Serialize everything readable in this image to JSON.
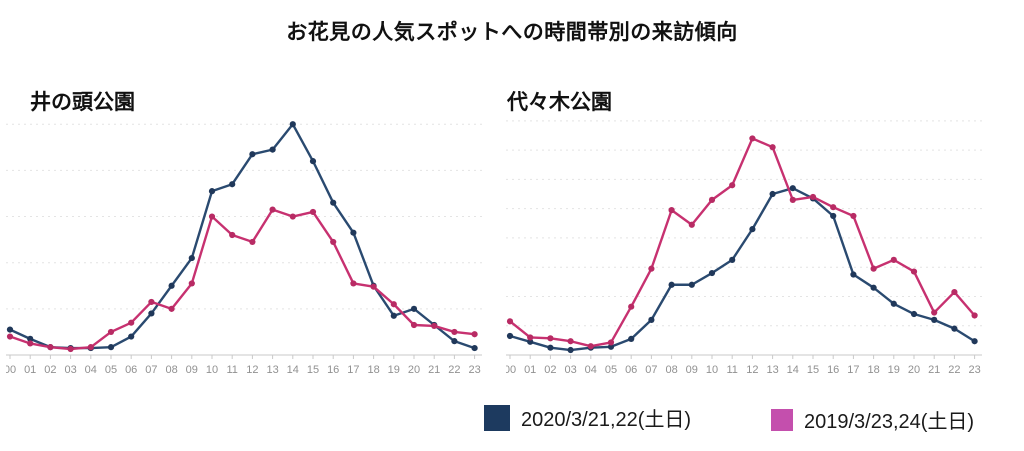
{
  "page_title": "お花見の人気スポットへの時間帯別の来訪傾向",
  "colors": {
    "series_2020_line": "#2a4a70",
    "series_2020_dot": "#20385a",
    "series_2019_line": "#c73170",
    "series_2019_dot": "#b82b64",
    "legend_2020_swatch": "#1d3a5f",
    "legend_2019_swatch": "#c44fad",
    "gridline": "#e4e4e4",
    "axis": "#c9c9c9",
    "tick_label": "#919191"
  },
  "legend": [
    {
      "label": "2020/3/21,22(土日)",
      "color": "#1d3a5f"
    },
    {
      "label": "2019/3/23,24(土日)",
      "color": "#c44fad"
    }
  ],
  "chart_data": [
    {
      "type": "line",
      "title": "井の頭公園",
      "xlabel": "",
      "ylabel": "",
      "y_axis_labels_visible": false,
      "grid": true,
      "grid_interval": 1,
      "ylim": [
        0,
        5.2
      ],
      "x": [
        "00",
        "01",
        "02",
        "03",
        "04",
        "05",
        "06",
        "07",
        "08",
        "09",
        "10",
        "11",
        "12",
        "13",
        "14",
        "15",
        "16",
        "17",
        "18",
        "19",
        "20",
        "21",
        "22",
        "23"
      ],
      "series": [
        {
          "name": "2020/3/21,22(土日)",
          "color": "#2a4a70",
          "values": [
            0.55,
            0.35,
            0.17,
            0.15,
            0.15,
            0.17,
            0.4,
            0.9,
            1.5,
            2.1,
            3.55,
            3.7,
            4.35,
            4.45,
            5.0,
            4.2,
            3.3,
            2.65,
            1.5,
            0.85,
            1.0,
            0.65,
            0.3,
            0.15
          ]
        },
        {
          "name": "2019/3/23,24(土日)",
          "color": "#c73170",
          "values": [
            0.4,
            0.25,
            0.17,
            0.13,
            0.17,
            0.5,
            0.7,
            1.15,
            1.0,
            1.55,
            3.0,
            2.6,
            2.45,
            3.15,
            3.0,
            3.1,
            2.45,
            1.55,
            1.48,
            1.1,
            0.65,
            0.63,
            0.5,
            0.45
          ]
        }
      ]
    },
    {
      "type": "line",
      "title": "代々木公園",
      "xlabel": "",
      "ylabel": "",
      "y_axis_labels_visible": false,
      "grid": true,
      "grid_interval": 1,
      "ylim": [
        0,
        8.2
      ],
      "x": [
        "00",
        "01",
        "02",
        "03",
        "04",
        "05",
        "06",
        "07",
        "08",
        "09",
        "10",
        "11",
        "12",
        "13",
        "14",
        "15",
        "16",
        "17",
        "18",
        "19",
        "20",
        "21",
        "22",
        "23"
      ],
      "series": [
        {
          "name": "2020/3/21,22(土日)",
          "color": "#2a4a70",
          "values": [
            0.65,
            0.45,
            0.25,
            0.17,
            0.25,
            0.28,
            0.55,
            1.2,
            2.4,
            2.4,
            2.8,
            3.25,
            4.3,
            5.5,
            5.7,
            5.35,
            4.75,
            2.75,
            2.3,
            1.75,
            1.4,
            1.2,
            0.9,
            0.47
          ]
        },
        {
          "name": "2019/3/23,24(土日)",
          "color": "#c73170",
          "values": [
            1.15,
            0.6,
            0.57,
            0.47,
            0.3,
            0.43,
            1.65,
            2.95,
            4.95,
            4.45,
            5.3,
            5.8,
            7.4,
            7.1,
            5.3,
            5.4,
            5.05,
            4.75,
            2.95,
            3.25,
            2.85,
            1.45,
            2.15,
            1.35
          ]
        }
      ]
    }
  ]
}
